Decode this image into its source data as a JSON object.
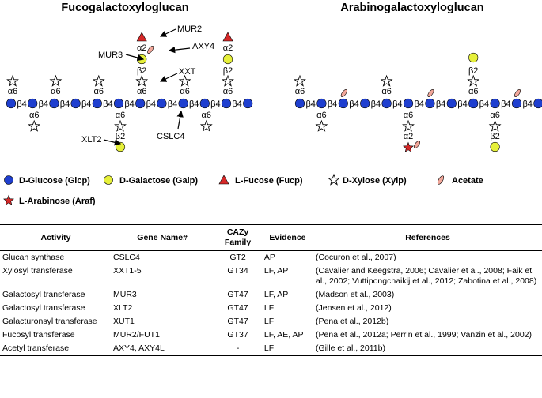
{
  "titles": {
    "left": "Fucogalactoxyloglucan",
    "right": "Arabinogalactoxyloglucan"
  },
  "linkages": {
    "a2": "α2",
    "a6": "α6",
    "b2": "β2",
    "b4": "β4"
  },
  "enzymes": {
    "mur2": "MUR2",
    "axy4": "AXY4",
    "mur3": "MUR3",
    "xxt": "XXT",
    "xlt2": "XLT2",
    "cslc4": "CSLC4"
  },
  "legend": {
    "glucose": "D-Glucose (Glcp)",
    "galactose": "D-Galactose (Galp)",
    "fucose": "L-Fucose (Fucp)",
    "xylose": "D-Xylose (Xylp)",
    "acetate": "Acetate",
    "arabinose": "L-Arabinose (Araf)"
  },
  "colors": {
    "glucose": "#1f3fcf",
    "galactose": "#e6f03a",
    "fucose": "#d62828",
    "xylose": "#ffffff",
    "acetate": "#f2a79a",
    "arabinose": "#d62828"
  },
  "table": {
    "headers": [
      "Activity",
      "Gene Name#",
      "CAZy Family",
      "Evidence",
      "References"
    ],
    "rows": [
      [
        "Glucan synthase",
        "CSLC4",
        "GT2",
        "AP",
        "(Cocuron et al., 2007)"
      ],
      [
        "Xylosyl transferase",
        "XXT1-5",
        "GT34",
        "LF, AP",
        "(Cavalier and Keegstra, 2006; Cavalier et al., 2008; Faik et al., 2002; Vuttipongchaikij et al., 2012; Zabotina et al., 2008)"
      ],
      [
        "Galactosyl transferase",
        "MUR3",
        "GT47",
        "LF, AP",
        "(Madson et al., 2003)"
      ],
      [
        "Galactosyl transferase",
        "XLT2",
        "GT47",
        "LF",
        "(Jensen et al., 2012)"
      ],
      [
        "Galacturonsyl transferase",
        "XUT1",
        "GT47",
        "LF",
        "(Pena et al., 2012b)"
      ],
      [
        "Fucosyl transferase",
        "MUR2/FUT1",
        "GT37",
        "LF, AE, AP",
        "(Pena et al., 2012a; Perrin et al., 1999; Vanzin et al., 2002)"
      ],
      [
        "Acetyl transferase",
        "AXY4, AXY4L",
        "-",
        "LF",
        "(Gille et al., 2011b)"
      ]
    ]
  }
}
